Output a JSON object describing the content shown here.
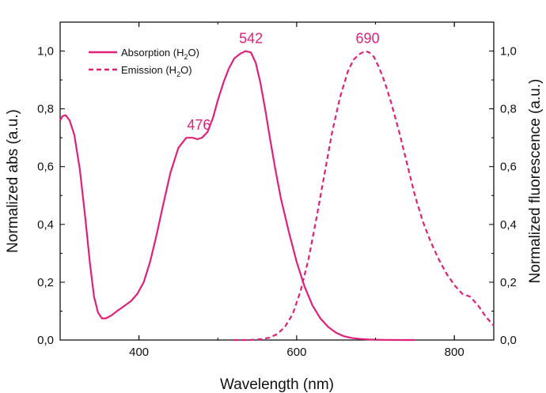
{
  "chart_data": {
    "type": "line",
    "xlabel": "Wavelength (nm)",
    "ylabel": "Normalized abs (a.u.)",
    "y2label": "Normalized fluorescence (a.u.)",
    "xlim": [
      300,
      850
    ],
    "ylim": [
      0,
      1.1
    ],
    "y2lim": [
      0,
      1.1
    ],
    "x_ticks": [
      400,
      600,
      800
    ],
    "x_tick_labels": [
      "400",
      "600",
      "800"
    ],
    "y_ticks": [
      0,
      0.2,
      0.4,
      0.6,
      0.8,
      1.0
    ],
    "y_tick_labels": [
      "0,0",
      "0,2",
      "0,4",
      "0,6",
      "0,8",
      "1,0"
    ],
    "y2_tick_labels": [
      "0,0",
      "0,2",
      "0,4",
      "0,6",
      "0,8",
      "1,0"
    ],
    "grid": false,
    "legend_position": "top-left",
    "line_color": "#e0207a",
    "series": [
      {
        "name": "Absorption (H2O)",
        "name_main": "Absorption (H",
        "name_sub": "2",
        "name_tail": "O)",
        "style": "solid",
        "x": [
          300,
          303,
          307,
          312,
          318,
          325,
          332,
          338,
          343,
          348,
          353,
          358,
          365,
          372,
          380,
          390,
          398,
          406,
          414,
          422,
          430,
          440,
          450,
          460,
          468,
          474,
          480,
          487,
          494,
          500,
          507,
          514,
          521,
          528,
          535,
          542,
          548,
          554,
          560,
          566,
          573,
          580,
          590,
          600,
          610,
          620,
          630,
          640,
          650,
          660,
          670,
          680,
          690,
          700,
          710,
          725,
          740,
          750
        ],
        "y": [
          0.76,
          0.775,
          0.778,
          0.76,
          0.71,
          0.59,
          0.42,
          0.26,
          0.15,
          0.095,
          0.075,
          0.075,
          0.085,
          0.1,
          0.115,
          0.135,
          0.16,
          0.2,
          0.27,
          0.36,
          0.46,
          0.58,
          0.665,
          0.7,
          0.7,
          0.695,
          0.7,
          0.72,
          0.77,
          0.83,
          0.89,
          0.94,
          0.975,
          0.99,
          1.0,
          0.995,
          0.96,
          0.89,
          0.8,
          0.7,
          0.59,
          0.49,
          0.375,
          0.27,
          0.185,
          0.12,
          0.075,
          0.045,
          0.025,
          0.013,
          0.007,
          0.004,
          0.002,
          0.001,
          0.0005,
          0.0002,
          0.0,
          0.0
        ]
      },
      {
        "name": "Emission (H2O)",
        "name_main": "Emission (H",
        "name_sub": "2",
        "name_tail": "O)",
        "style": "dashed",
        "x": [
          520,
          540,
          555,
          565,
          575,
          585,
          595,
          605,
          615,
          625,
          635,
          645,
          655,
          665,
          672,
          680,
          687,
          692,
          698,
          705,
          712,
          720,
          730,
          740,
          750,
          760,
          770,
          780,
          790,
          800,
          810,
          820,
          830,
          840,
          850
        ],
        "y": [
          0.0,
          0.0,
          0.003,
          0.008,
          0.02,
          0.045,
          0.09,
          0.17,
          0.28,
          0.42,
          0.57,
          0.72,
          0.84,
          0.93,
          0.97,
          0.99,
          1.0,
          0.995,
          0.98,
          0.94,
          0.89,
          0.82,
          0.72,
          0.61,
          0.5,
          0.41,
          0.34,
          0.28,
          0.23,
          0.19,
          0.16,
          0.15,
          0.12,
          0.08,
          0.05
        ]
      }
    ],
    "annotations": [
      {
        "text": "476",
        "x": 476,
        "y": 0.7
      },
      {
        "text": "542",
        "x": 542,
        "y": 1.0
      },
      {
        "text": "690",
        "x": 690,
        "y": 1.0
      }
    ]
  }
}
